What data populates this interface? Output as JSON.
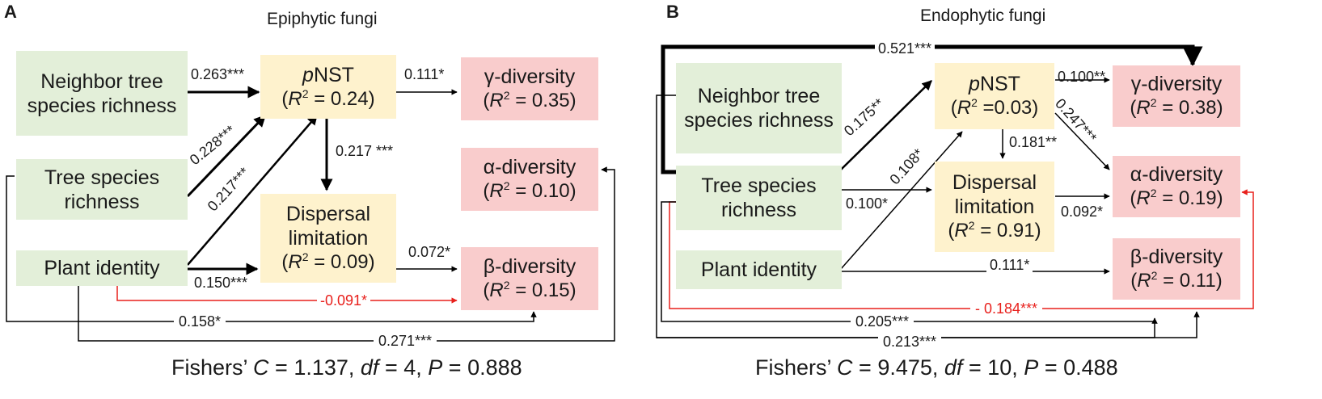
{
  "panelA": {
    "label": "A",
    "title": "Epiphytic fungi",
    "boxes": {
      "neighbor": "Neighbor tree species richness",
      "tree": "Tree species richness",
      "plant": "Plant identity",
      "pnst_name": "pNST",
      "pnst_r2": "0.24",
      "dispersal": "Dispersal limitation",
      "dispersal_r2": "0.09",
      "gamma": "γ-diversity",
      "gamma_r2": "0.35",
      "alpha": "α-diversity",
      "alpha_r2": "0.10",
      "beta": "β-diversity",
      "beta_r2": "0.15"
    },
    "paths": {
      "neighbor_pnst": "0.263***",
      "pnst_gamma": "0.111*",
      "tree_pnst": "0.228***",
      "plant_pnst": "0.217***",
      "pnst_dispersal": "0.217 ***",
      "plant_dispersal": "0.150***",
      "dispersal_beta": "0.072*",
      "plant_beta_neg": "-0.091*",
      "tree_beta": "0.158*",
      "plant_alpha": "0.271***"
    },
    "fisher": {
      "prefix": "Fishers’",
      "c": "C",
      "c_val": "= 1.137,",
      "df": "df",
      "df_val": "= 4,",
      "p": "P",
      "p_val": "= 0.888"
    }
  },
  "panelB": {
    "label": "B",
    "title": "Endophytic fungi",
    "boxes": {
      "neighbor": "Neighbor tree species richness",
      "tree": "Tree species richness",
      "plant": "Plant identity",
      "pnst_name": "pNST",
      "pnst_r2": "0.03",
      "dispersal": "Dispersal limitation",
      "dispersal_r2": "0.91",
      "gamma": "γ-diversity",
      "gamma_r2": "0.38",
      "alpha": "α-diversity",
      "alpha_r2": "0.19",
      "beta": "β-diversity",
      "beta_r2": "0.11"
    },
    "paths": {
      "tree_gamma_top": "0.521***",
      "tree_pnst": "0.175**",
      "plant_pnst": "0.108*",
      "pnst_gamma": "0.100**",
      "pnst_alpha": "0.247***",
      "pnst_dispersal": "0.181**",
      "tree_dispersal": "0.100*",
      "dispersal_alpha": "0.092*",
      "plant_beta": "0.111*",
      "tree_alpha_neg": "- 0.184***",
      "tree_beta": "0.205***",
      "plant_beta_bottom": "0.213***"
    },
    "fisher": {
      "prefix": "Fishers’",
      "c": "C",
      "c_val": "= 9.475,",
      "df": "df",
      "df_val": "= 10,",
      "p": "P",
      "p_val": "= 0.488"
    }
  },
  "colors": {
    "green": "#e3efd9",
    "yellow": "#fef2cd",
    "pink": "#f9cccc",
    "negative": "#e8201c",
    "arrow": "#000000"
  }
}
